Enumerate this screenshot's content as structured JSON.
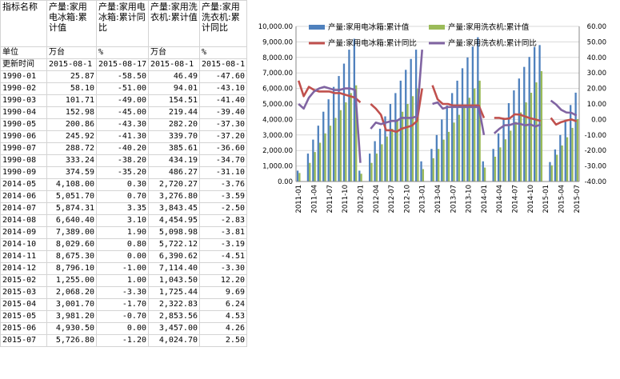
{
  "sheet": {
    "col_header_label": "指标名称",
    "series_headers": [
      "产量:家用电冰箱:累计值",
      "产量:家用电冰箱:累计同比",
      "产量:家用洗衣机:累计值",
      "产量:家用洗衣机:累计同比"
    ],
    "unit_label": "单位",
    "units": [
      "万台",
      "%",
      "万台",
      "%"
    ],
    "update_label": "更新时间",
    "updates": [
      "2015-08-1",
      "2015-08-17",
      "2015-08-1",
      "2015-08-1"
    ],
    "rows": [
      [
        "1990-01",
        "25.87",
        "-58.50",
        "46.49",
        "-47.60"
      ],
      [
        "1990-02",
        "58.10",
        "-51.00",
        "94.01",
        "-43.10"
      ],
      [
        "1990-03",
        "101.71",
        "-49.00",
        "154.51",
        "-41.40"
      ],
      [
        "1990-04",
        "152.98",
        "-45.00",
        "219.44",
        "-39.40"
      ],
      [
        "1990-05",
        "200.86",
        "-43.30",
        "282.20",
        "-37.30"
      ],
      [
        "1990-06",
        "245.92",
        "-41.30",
        "339.70",
        "-37.20"
      ],
      [
        "1990-07",
        "288.72",
        "-40.20",
        "385.61",
        "-36.60"
      ],
      [
        "1990-08",
        "333.24",
        "-38.20",
        "434.19",
        "-34.70"
      ],
      [
        "1990-09",
        "374.59",
        "-35.20",
        "486.27",
        "-31.10"
      ],
      [
        "2014-05",
        "4,108.00",
        "0.30",
        "2,720.27",
        "-3.76"
      ],
      [
        "2014-06",
        "5,051.70",
        "0.70",
        "3,276.80",
        "-3.59"
      ],
      [
        "2014-07",
        "5,874.31",
        "3.35",
        "3,843.45",
        "-2.50"
      ],
      [
        "2014-08",
        "6,640.40",
        "3.10",
        "4,454.95",
        "-2.83"
      ],
      [
        "2014-09",
        "7,389.00",
        "1.90",
        "5,098.98",
        "-3.81"
      ],
      [
        "2014-10",
        "8,029.60",
        "0.80",
        "5,722.12",
        "-3.19"
      ],
      [
        "2014-11",
        "8,675.30",
        "0.00",
        "6,390.62",
        "-4.51"
      ],
      [
        "2014-12",
        "8,796.10",
        "-1.00",
        "7,114.40",
        "-3.30"
      ],
      [
        "2015-02",
        "1,255.00",
        "1.00",
        "1,043.50",
        "12.20"
      ],
      [
        "2015-03",
        "2,068.20",
        "-3.30",
        "1,725.44",
        "9.69"
      ],
      [
        "2015-04",
        "3,001.70",
        "-1.70",
        "2,322.83",
        "6.24"
      ],
      [
        "2015-05",
        "3,981.20",
        "-0.70",
        "2,853.56",
        "4.53"
      ],
      [
        "2015-06",
        "4,930.50",
        "0.00",
        "3,457.00",
        "4.26"
      ],
      [
        "2015-07",
        "5,726.80",
        "-1.20",
        "4,024.70",
        "2.50"
      ]
    ]
  },
  "chart_data": {
    "type": "bar",
    "title": "",
    "y_left_lim": [
      0,
      10000
    ],
    "y_left_ticks": [
      "0.00",
      "1,000.00",
      "2,000.00",
      "3,000.00",
      "4,000.00",
      "5,000.00",
      "6,000.00",
      "7,000.00",
      "8,000.00",
      "9,000.00",
      "10,000.00"
    ],
    "y_right_lim": [
      -40,
      60
    ],
    "y_right_ticks": [
      "60.00",
      "50.00",
      "40.00",
      "30.00",
      "20.00",
      "10.00",
      "0.00",
      "-10.00",
      "-20.00",
      "-30.00",
      "-40.00"
    ],
    "x_tick_labels": [
      "2011-01",
      "2011-04",
      "2011-07",
      "2011-10",
      "2012-01",
      "2012-04",
      "2012-07",
      "2012-10",
      "2013-01",
      "2013-04",
      "2013-07",
      "2013-10",
      "2014-01",
      "2014-04",
      "2014-07",
      "2014-10",
      "2015-01",
      "2015-04",
      "2015-07"
    ],
    "legend": [
      "产量:家用电冰箱:累计值",
      "产量:家用洗衣机:累计值",
      "产量:家用电冰箱:累计同比",
      "产量:家用洗衣机:累计同比"
    ],
    "legend_position": "top",
    "colors": {
      "bar_fridge": "#4f81bd",
      "bar_washer": "#9bbb59",
      "line_fridge": "#c0504d",
      "line_washer": "#8064a2",
      "grid": "#d9d9d9"
    },
    "months": [
      "2011-01",
      "2011-02",
      "2011-03",
      "2011-04",
      "2011-05",
      "2011-06",
      "2011-07",
      "2011-08",
      "2011-09",
      "2011-10",
      "2011-11",
      "2011-12",
      "2012-01",
      "2012-02",
      "2012-03",
      "2012-04",
      "2012-05",
      "2012-06",
      "2012-07",
      "2012-08",
      "2012-09",
      "2012-10",
      "2012-11",
      "2012-12",
      "2013-01",
      "2013-02",
      "2013-03",
      "2013-04",
      "2013-05",
      "2013-06",
      "2013-07",
      "2013-08",
      "2013-09",
      "2013-10",
      "2013-11",
      "2013-12",
      "2014-01",
      "2014-02",
      "2014-03",
      "2014-04",
      "2014-05",
      "2014-06",
      "2014-07",
      "2014-08",
      "2014-09",
      "2014-10",
      "2014-11",
      "2014-12",
      "2015-01",
      "2015-02",
      "2015-03",
      "2015-04",
      "2015-05",
      "2015-06",
      "2015-07"
    ],
    "series": [
      {
        "name": "产量:家用电冰箱:累计值",
        "axis": "left",
        "kind": "bar",
        "values": [
          700,
          null,
          1800,
          2700,
          3600,
          4500,
          5300,
          6100,
          6800,
          7600,
          8500,
          9200,
          700,
          null,
          1800,
          2600,
          3400,
          4200,
          5000,
          5700,
          6500,
          7200,
          7900,
          8500,
          1300,
          null,
          2100,
          3000,
          4000,
          4900,
          5700,
          6500,
          7300,
          8000,
          8700,
          9300,
          1300,
          null,
          2100,
          3100,
          4108,
          5052,
          5874,
          6640,
          7389,
          8030,
          8675,
          8796,
          null,
          1255,
          2068,
          3002,
          3981,
          4931,
          5727
        ]
      },
      {
        "name": "产量:家用洗衣机:累计值",
        "axis": "left",
        "kind": "bar",
        "values": [
          550,
          null,
          1200,
          1900,
          2500,
          3100,
          3600,
          4100,
          4600,
          5100,
          5700,
          6200,
          500,
          null,
          1200,
          1800,
          2400,
          2900,
          3400,
          3900,
          4500,
          5000,
          5500,
          6000,
          800,
          null,
          1500,
          2100,
          2700,
          3200,
          3800,
          4300,
          4900,
          5400,
          6000,
          6500,
          900,
          null,
          1600,
          2200,
          2720,
          3277,
          3843,
          4455,
          5099,
          5722,
          6391,
          7114,
          null,
          1044,
          1725,
          2323,
          2854,
          3457,
          4025
        ]
      },
      {
        "name": "产量:家用电冰箱:累计同比",
        "axis": "right",
        "kind": "line",
        "values": [
          25,
          15,
          21,
          19,
          18,
          18,
          18,
          17,
          17,
          16,
          15,
          14,
          11,
          null,
          10,
          7,
          3,
          -7,
          -7,
          -8,
          -6,
          -5,
          -4,
          -1,
          20,
          null,
          22,
          13,
          10,
          10,
          9,
          9,
          9,
          9,
          9,
          9,
          1,
          null,
          1,
          1,
          0.3,
          0.7,
          3.35,
          3.1,
          1.9,
          0.8,
          0,
          -1,
          null,
          1,
          -3.3,
          -1.7,
          -0.7,
          0,
          -1.2
        ]
      },
      {
        "name": "产量:家用洗衣机:累计同比",
        "axis": "right",
        "kind": "line",
        "values": [
          10,
          7,
          14,
          18,
          20,
          21,
          20,
          19,
          19,
          20,
          20,
          19,
          -28,
          null,
          -6,
          -2,
          -3,
          -2,
          -1,
          -1,
          1,
          1,
          1,
          2,
          45,
          null,
          10,
          11,
          7,
          8,
          8,
          8,
          8,
          8,
          8,
          8,
          -10,
          null,
          -9,
          -6,
          -3.76,
          -3.59,
          -2.5,
          -2.83,
          -3.81,
          -3.19,
          -4.51,
          -3.3,
          null,
          12.2,
          9.69,
          6.24,
          4.53,
          4.26,
          2.5
        ]
      }
    ]
  }
}
